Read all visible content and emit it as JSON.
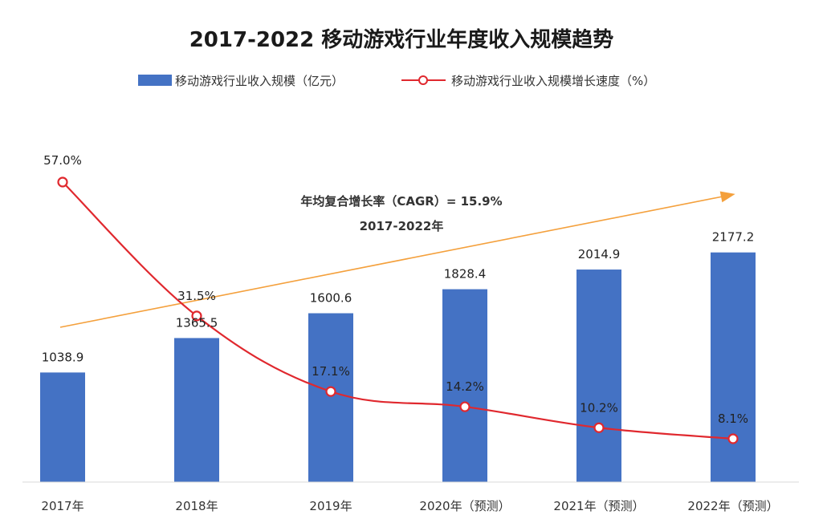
{
  "chart_data": {
    "type": "bar",
    "title": "2017-2022  移动游戏行业年度收入规模趋势",
    "categories": [
      "2017年",
      "2018年",
      "2019年",
      "2020年（预测）",
      "2021年（预测）",
      "2022年（预测）"
    ],
    "series": [
      {
        "name": "移动游戏行业收入规模（亿元）",
        "type": "bar",
        "axis": "left",
        "values": [
          1038.9,
          1365.5,
          1600.6,
          1828.4,
          2014.9,
          2177.2
        ],
        "value_labels": [
          "1038.9",
          "1365.5",
          "1600.6",
          "1828.4",
          "2014.9",
          "2177.2"
        ],
        "color": "#4472C4"
      },
      {
        "name": "移动游戏行业收入规模增长速度（%）",
        "type": "line",
        "axis": "right",
        "values": [
          57.0,
          31.5,
          17.1,
          14.2,
          10.2,
          8.1
        ],
        "value_labels": [
          "57.0%",
          "31.5%",
          "17.1%",
          "14.2%",
          "10.2%",
          "8.1%"
        ],
        "color": "#E0282E"
      }
    ],
    "annotation": {
      "line1": "年均复合增长率（CAGR）= 15.9%",
      "line2": "2017-2022年",
      "arrow_color": "#F4A03C"
    },
    "legend_position": "top-left",
    "grid": false
  }
}
